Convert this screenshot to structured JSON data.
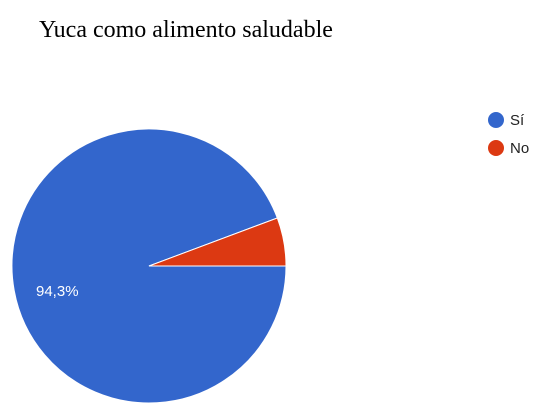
{
  "chart_data": {
    "type": "pie",
    "title": "Yuca como alimento saludable",
    "categories": [
      "Sí",
      "No"
    ],
    "values": [
      94.3,
      5.7
    ],
    "colors": [
      "#3366cc",
      "#dc3912"
    ],
    "data_labels": [
      "94,3%",
      ""
    ],
    "legend": "right"
  }
}
